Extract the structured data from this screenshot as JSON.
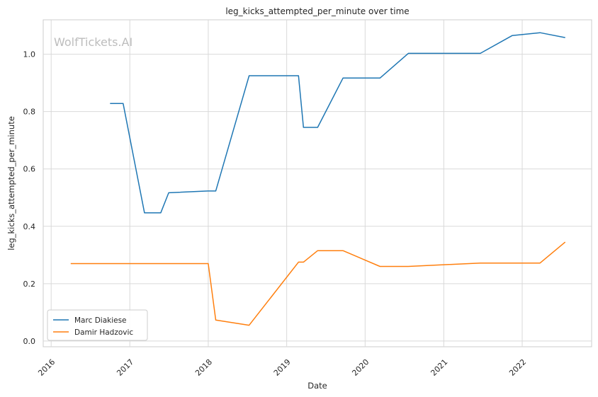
{
  "chart_data": {
    "type": "line",
    "title": "leg_kicks_attempted_per_minute over time",
    "xlabel": "Date",
    "ylabel": "leg_kicks_attempted_per_minute",
    "watermark": "WolfTickets.AI",
    "x_tick_labels": [
      "2016",
      "2017",
      "2018",
      "2019",
      "2020",
      "2021",
      "2022"
    ],
    "y_ticks": [
      0.0,
      0.2,
      0.4,
      0.6,
      0.8,
      1.0
    ],
    "y_tick_labels": [
      "0.0",
      "0.2",
      "0.4",
      "0.6",
      "0.8",
      "1.0"
    ],
    "xlim": [
      "2015-11-25",
      "2022-11-20"
    ],
    "ylim": [
      -0.02,
      1.12
    ],
    "grid": true,
    "legend_position": "lower-left",
    "series": [
      {
        "name": "Marc Diakiese",
        "color": "#1f77b4",
        "points": [
          [
            "2016-10-01",
            0.828
          ],
          [
            "2016-12-01",
            0.828
          ],
          [
            "2017-03-10",
            0.447
          ],
          [
            "2017-05-25",
            0.447
          ],
          [
            "2017-07-01",
            0.517
          ],
          [
            "2017-12-30",
            0.523
          ],
          [
            "2018-02-05",
            0.523
          ],
          [
            "2018-07-10",
            0.925
          ],
          [
            "2019-02-25",
            0.925
          ],
          [
            "2019-03-20",
            0.745
          ],
          [
            "2019-05-25",
            0.745
          ],
          [
            "2019-09-20",
            0.917
          ],
          [
            "2020-03-10",
            0.917
          ],
          [
            "2020-07-20",
            1.003
          ],
          [
            "2021-06-20",
            1.003
          ],
          [
            "2021-11-15",
            1.065
          ],
          [
            "2022-03-25",
            1.075
          ],
          [
            "2022-07-20",
            1.058
          ]
        ]
      },
      {
        "name": "Damir Hadzovic",
        "color": "#ff7f0e",
        "points": [
          [
            "2016-04-01",
            0.27
          ],
          [
            "2018-01-01",
            0.27
          ],
          [
            "2018-02-05",
            0.073
          ],
          [
            "2018-07-10",
            0.055
          ],
          [
            "2019-02-25",
            0.275
          ],
          [
            "2019-03-20",
            0.275
          ],
          [
            "2019-05-25",
            0.315
          ],
          [
            "2019-09-20",
            0.315
          ],
          [
            "2020-03-10",
            0.26
          ],
          [
            "2020-07-20",
            0.26
          ],
          [
            "2021-06-20",
            0.272
          ],
          [
            "2022-03-25",
            0.272
          ],
          [
            "2022-07-20",
            0.345
          ]
        ]
      }
    ]
  }
}
